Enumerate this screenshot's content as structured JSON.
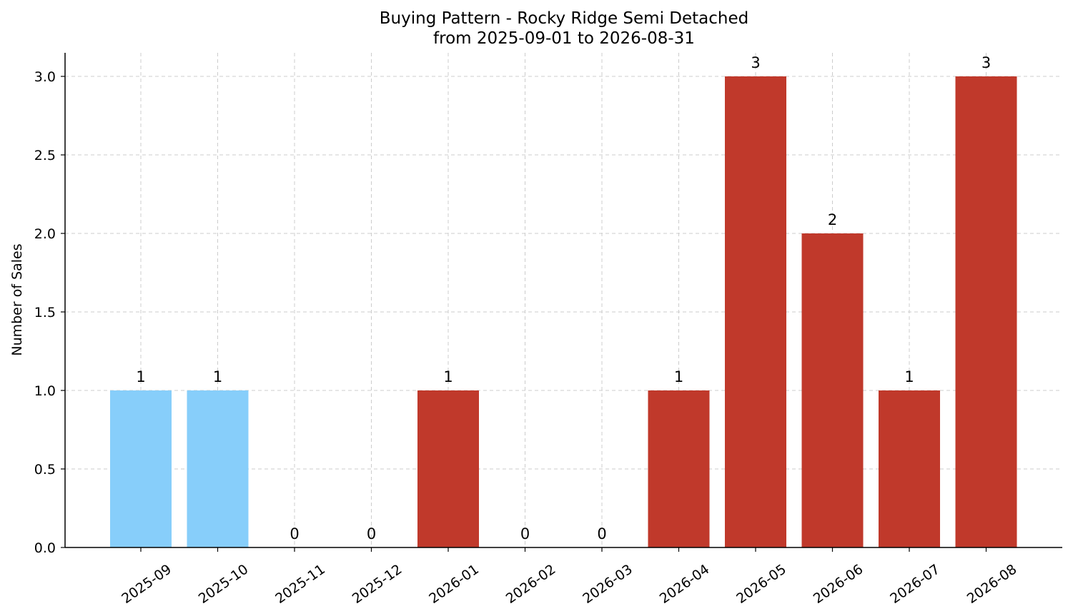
{
  "chart_data": {
    "type": "bar",
    "title": "Buying Pattern - Rocky Ridge Semi Detached",
    "subtitle": "from 2025-09-01 to 2026-08-31",
    "xlabel": "",
    "ylabel": "Number of Sales",
    "ylim": [
      0,
      3.15
    ],
    "yticks": [
      0.0,
      0.5,
      1.0,
      1.5,
      2.0,
      2.5,
      3.0
    ],
    "ytick_labels": [
      "0.0",
      "0.5",
      "1.0",
      "1.5",
      "2.0",
      "2.5",
      "3.0"
    ],
    "grid": true,
    "categories": [
      "2025-09",
      "2025-10",
      "2025-11",
      "2025-12",
      "2026-01",
      "2026-02",
      "2026-03",
      "2026-04",
      "2026-05",
      "2026-06",
      "2026-07",
      "2026-08"
    ],
    "values": [
      1,
      1,
      0,
      0,
      1,
      0,
      0,
      1,
      3,
      2,
      1,
      3
    ],
    "bar_colors": [
      "#87cefa",
      "#87cefa",
      "#87cefa",
      "#87cefa",
      "#c0392b",
      "#c0392b",
      "#c0392b",
      "#c0392b",
      "#c0392b",
      "#c0392b",
      "#c0392b",
      "#c0392b"
    ],
    "data_labels": [
      "1",
      "1",
      "0",
      "0",
      "1",
      "0",
      "0",
      "1",
      "3",
      "2",
      "1",
      "3"
    ]
  }
}
